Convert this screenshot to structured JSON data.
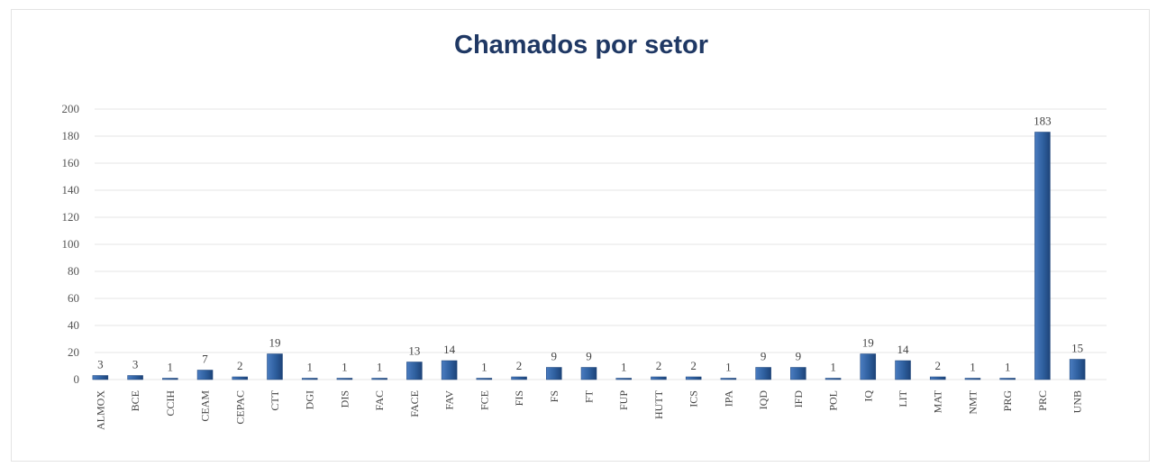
{
  "chart_data": {
    "type": "bar",
    "title": "Chamados por setor",
    "xlabel": "",
    "ylabel": "",
    "ylim": [
      0,
      200
    ],
    "yticks": [
      0,
      20,
      40,
      60,
      80,
      100,
      120,
      140,
      160,
      180,
      200
    ],
    "grid": true,
    "legend": "none",
    "color": "#2e5f9e",
    "categories": [
      "ALMOX",
      "BCE",
      "CCIH",
      "CEAM",
      "CEPAC",
      "CTT",
      "DGI",
      "DIS",
      "FAC",
      "FACE",
      "FAV",
      "FCE",
      "FIS",
      "FS",
      "FT",
      "FUP",
      "HUTT",
      "ICS",
      "IPA",
      "IQD",
      "IFD",
      "POL",
      "IQ",
      "LIT",
      "MAT",
      "NMT",
      "PRG",
      "PRC",
      "UNB"
    ],
    "values": [
      3,
      3,
      1,
      7,
      2,
      19,
      1,
      1,
      1,
      13,
      14,
      1,
      2,
      9,
      9,
      1,
      2,
      2,
      1,
      9,
      9,
      1,
      19,
      14,
      2,
      1,
      1,
      183,
      15
    ]
  }
}
